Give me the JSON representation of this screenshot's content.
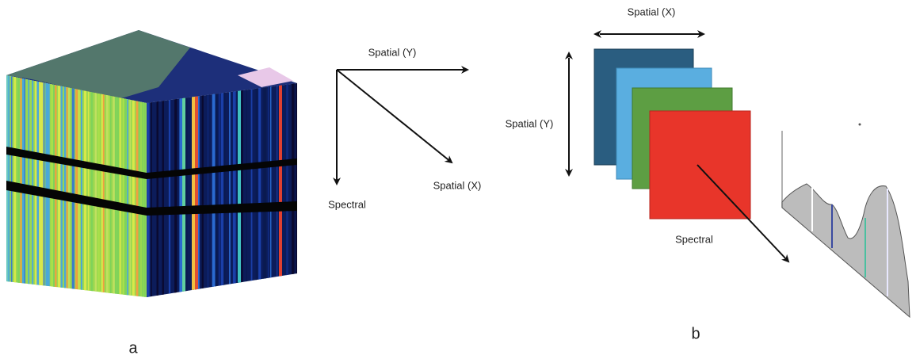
{
  "panel_a": {
    "axes": {
      "spatial_y": "Spatial (Y)",
      "spatial_x": "Spatial (X)",
      "spectral": "Spectral"
    },
    "label": "a"
  },
  "panel_b": {
    "spatial_x": "Spatial (X)",
    "spatial_y": "Spatial (Y)",
    "spectral": "Spectral",
    "label": "b"
  }
}
